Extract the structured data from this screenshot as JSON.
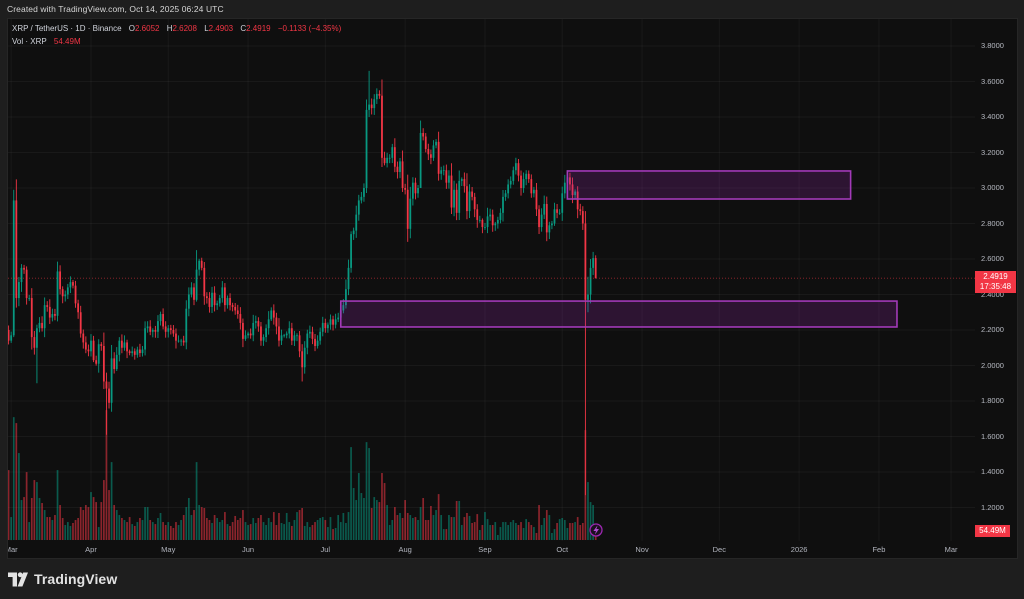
{
  "header": {
    "created_text": "Created with TradingView.com, Oct 14, 2025 06:24 UTC"
  },
  "legend": {
    "symbol": "XRP / TetherUS · 1D · Binance",
    "o_label": "O",
    "o_value": "2.6052",
    "h_label": "H",
    "h_value": "2.6208",
    "l_label": "L",
    "l_value": "2.4903",
    "c_label": "C",
    "c_value": "2.4919",
    "change": "−0.1133 (−4.35%)",
    "vol_label": "Vol · XRP",
    "vol_value": "54.49M"
  },
  "price_axis": {
    "last_price": "2.4919",
    "countdown": "17:35:48",
    "volume_tag": "54.49M"
  },
  "footer": {
    "brand": "TradingView"
  },
  "icons": {
    "logo": "tradingview-logo-icon",
    "event_marker": "lightning-icon"
  },
  "colors": {
    "background": "#1e1e1e",
    "panel": "#0f0f0f",
    "up": "#089981",
    "down": "#f23645",
    "zone_stroke": "#a23ab8",
    "zone_fill": "rgba(156,39,176,0.22)",
    "grid": "rgba(255,255,255,0.045)",
    "axis_text": "#b7bac2"
  },
  "chart_data": {
    "type": "candlestick",
    "title": "XRP / TetherUS · 1D · Binance",
    "interval": "1D",
    "x_start": "2025-02-28",
    "x_end": "2025-10-14",
    "first_open": 2.2,
    "open_rule": "open = previous close",
    "close": [
      2.14,
      2.17,
      2.93,
      2.38,
      2.47,
      2.55,
      2.54,
      2.38,
      2.38,
      2.16,
      2.1,
      2.21,
      2.24,
      2.21,
      2.34,
      2.33,
      2.27,
      2.29,
      2.28,
      2.53,
      2.43,
      2.39,
      2.4,
      2.44,
      2.47,
      2.45,
      2.35,
      2.3,
      2.18,
      2.13,
      2.09,
      2.08,
      2.14,
      2.03,
      2.01,
      2.12,
      2.11,
      1.91,
      1.87,
      1.79,
      2.04,
      1.98,
      2.06,
      2.14,
      2.1,
      2.13,
      2.08,
      2.07,
      2.08,
      2.06,
      2.09,
      2.07,
      2.09,
      2.21,
      2.22,
      2.19,
      2.2,
      2.19,
      2.25,
      2.29,
      2.22,
      2.19,
      2.21,
      2.2,
      2.18,
      2.14,
      2.14,
      2.14,
      2.13,
      2.32,
      2.4,
      2.44,
      2.37,
      2.54,
      2.59,
      2.55,
      2.39,
      2.38,
      2.33,
      2.41,
      2.34,
      2.35,
      2.38,
      2.44,
      2.34,
      2.38,
      2.34,
      2.33,
      2.31,
      2.29,
      2.24,
      2.15,
      2.17,
      2.18,
      2.17,
      2.24,
      2.25,
      2.22,
      2.14,
      2.16,
      2.21,
      2.26,
      2.31,
      2.27,
      2.22,
      2.14,
      2.17,
      2.17,
      2.18,
      2.21,
      2.14,
      2.17,
      2.17,
      2.08,
      1.99,
      2.1,
      2.18,
      2.19,
      2.15,
      2.11,
      2.14,
      2.19,
      2.24,
      2.21,
      2.23,
      2.26,
      2.23,
      2.26,
      2.27,
      2.31,
      2.34,
      2.43,
      2.55,
      2.74,
      2.76,
      2.85,
      2.93,
      2.95,
      3.0,
      3.44,
      3.47,
      3.45,
      3.5,
      3.53,
      3.52,
      3.17,
      3.14,
      3.17,
      3.17,
      3.23,
      3.12,
      3.09,
      3.15,
      3.0,
      2.99,
      2.77,
      2.94,
      3.03,
      2.97,
      3.0,
      3.31,
      3.29,
      3.22,
      3.19,
      3.17,
      3.24,
      3.26,
      3.08,
      3.1,
      3.1,
      3.03,
      3.07,
      2.89,
      2.99,
      2.86,
      3.04,
      3.05,
      3.01,
      2.87,
      2.98,
      2.95,
      2.88,
      2.82,
      2.82,
      2.78,
      2.78,
      2.84,
      2.85,
      2.79,
      2.8,
      2.82,
      2.86,
      2.95,
      2.97,
      3.02,
      3.04,
      3.1,
      3.14,
      3.07,
      3.0,
      3.05,
      3.08,
      3.05,
      2.97,
      2.99,
      2.88,
      2.78,
      2.85,
      2.91,
      2.75,
      2.79,
      2.8,
      2.88,
      2.86,
      2.86,
      2.97,
      3.03,
      3.06,
      3.02,
      2.96,
      2.98,
      2.88,
      2.87,
      2.8,
      2.37,
      2.4,
      2.55,
      2.6052,
      2.4919
    ],
    "high_low_overrides": {
      "2": [
        2.99,
        2.16
      ],
      "11": [
        2.23,
        1.9
      ],
      "38": [
        1.96,
        1.61
      ],
      "73": [
        2.65,
        2.36
      ],
      "114": [
        2.12,
        1.91
      ],
      "140": [
        3.66,
        3.4
      ],
      "160": [
        3.38,
        3.0
      ],
      "217": [
        3.1,
        3.0
      ],
      "224": [
        2.87,
        1.27
      ],
      "225": [
        2.5,
        2.3
      ],
      "226": [
        2.6,
        2.35
      ],
      "227": [
        2.64,
        2.51
      ],
      "228": [
        2.6208,
        2.4903
      ]
    },
    "volume_m": [
      518,
      170,
      910,
      866,
      644,
      296,
      318,
      503,
      133,
      311,
      444,
      429,
      311,
      274,
      222,
      170,
      170,
      148,
      185,
      518,
      259,
      163,
      111,
      133,
      104,
      126,
      148,
      163,
      244,
      222,
      259,
      244,
      355,
      318,
      281,
      96,
      281,
      444,
      962,
      370,
      577,
      259,
      222,
      185,
      163,
      148,
      133,
      170,
      118,
      104,
      133,
      163,
      148,
      244,
      244,
      148,
      133,
      118,
      163,
      200,
      133,
      111,
      133,
      104,
      89,
      133,
      111,
      148,
      185,
      244,
      311,
      185,
      222,
      577,
      259,
      244,
      237,
      163,
      148,
      126,
      185,
      163,
      133,
      148,
      207,
      118,
      104,
      133,
      178,
      148,
      163,
      222,
      133,
      111,
      118,
      163,
      126,
      163,
      185,
      133,
      111,
      163,
      133,
      207,
      111,
      200,
      126,
      118,
      200,
      133,
      104,
      148,
      207,
      222,
      237,
      104,
      133,
      96,
      111,
      133,
      148,
      163,
      170,
      148,
      96,
      170,
      81,
      89,
      185,
      133,
      200,
      126,
      207,
      688,
      385,
      296,
      496,
      348,
      311,
      725,
      681,
      237,
      318,
      296,
      281,
      496,
      422,
      259,
      111,
      148,
      244,
      185,
      200,
      163,
      296,
      200,
      185,
      163,
      170,
      148,
      244,
      311,
      148,
      148,
      252,
      185,
      222,
      340,
      185,
      81,
      81,
      185,
      170,
      170,
      289,
      289,
      111,
      170,
      200,
      178,
      126,
      133,
      192,
      74,
      111,
      207,
      155,
      111,
      111,
      133,
      37,
      96,
      133,
      133,
      111,
      133,
      148,
      126,
      111,
      133,
      89,
      155,
      133,
      111,
      96,
      52,
      259,
      111,
      163,
      222,
      185,
      52,
      81,
      126,
      155,
      163,
      148,
      89,
      126,
      126,
      133,
      170,
      111,
      126,
      814,
      429,
      281,
      259,
      54.49
    ],
    "last_price": 2.4919,
    "ylim": [
      1.05,
      3.93
    ],
    "y_ticks": [
      {
        "value": 3.8,
        "label": "3.8000"
      },
      {
        "value": 3.6,
        "label": "3.6000"
      },
      {
        "value": 3.4,
        "label": "3.4000"
      },
      {
        "value": 3.2,
        "label": "3.2000"
      },
      {
        "value": 3.0,
        "label": "3.0000"
      },
      {
        "value": 2.8,
        "label": "2.8000"
      },
      {
        "value": 2.6,
        "label": "2.6000"
      },
      {
        "value": 2.4,
        "label": "2.4000"
      },
      {
        "value": 2.2,
        "label": "2.2000"
      },
      {
        "value": 2.0,
        "label": "2.0000"
      },
      {
        "value": 1.8,
        "label": "1.8000"
      },
      {
        "value": 1.6,
        "label": "1.6000"
      },
      {
        "value": 1.4,
        "label": "1.4000"
      },
      {
        "value": 1.2,
        "label": "1.2000"
      }
    ],
    "x_ticks": [
      {
        "label": "Mar",
        "date": "2025-03-01"
      },
      {
        "label": "Apr",
        "date": "2025-04-01"
      },
      {
        "label": "May",
        "date": "2025-05-01"
      },
      {
        "label": "Jun",
        "date": "2025-06-01"
      },
      {
        "label": "Jul",
        "date": "2025-07-01"
      },
      {
        "label": "Aug",
        "date": "2025-08-01"
      },
      {
        "label": "Sep",
        "date": "2025-09-01"
      },
      {
        "label": "Oct",
        "date": "2025-10-01"
      },
      {
        "label": "Nov",
        "date": "2025-11-01"
      },
      {
        "label": "Dec",
        "date": "2025-12-01"
      },
      {
        "label": "2026",
        "date": "2026-01-01"
      },
      {
        "label": "Feb",
        "date": "2026-02-01"
      },
      {
        "label": "Mar",
        "date": "2026-03-01"
      }
    ],
    "zones": [
      {
        "name": "resistance-zone",
        "from": "2025-10-03",
        "to": "2026-01-21",
        "top": 3.096,
        "bottom": 2.938
      },
      {
        "name": "support-zone",
        "from": "2025-07-07",
        "to": "2026-02-08",
        "top": 2.363,
        "bottom": 2.217
      }
    ],
    "grid": true,
    "legend_position": "top-left"
  }
}
